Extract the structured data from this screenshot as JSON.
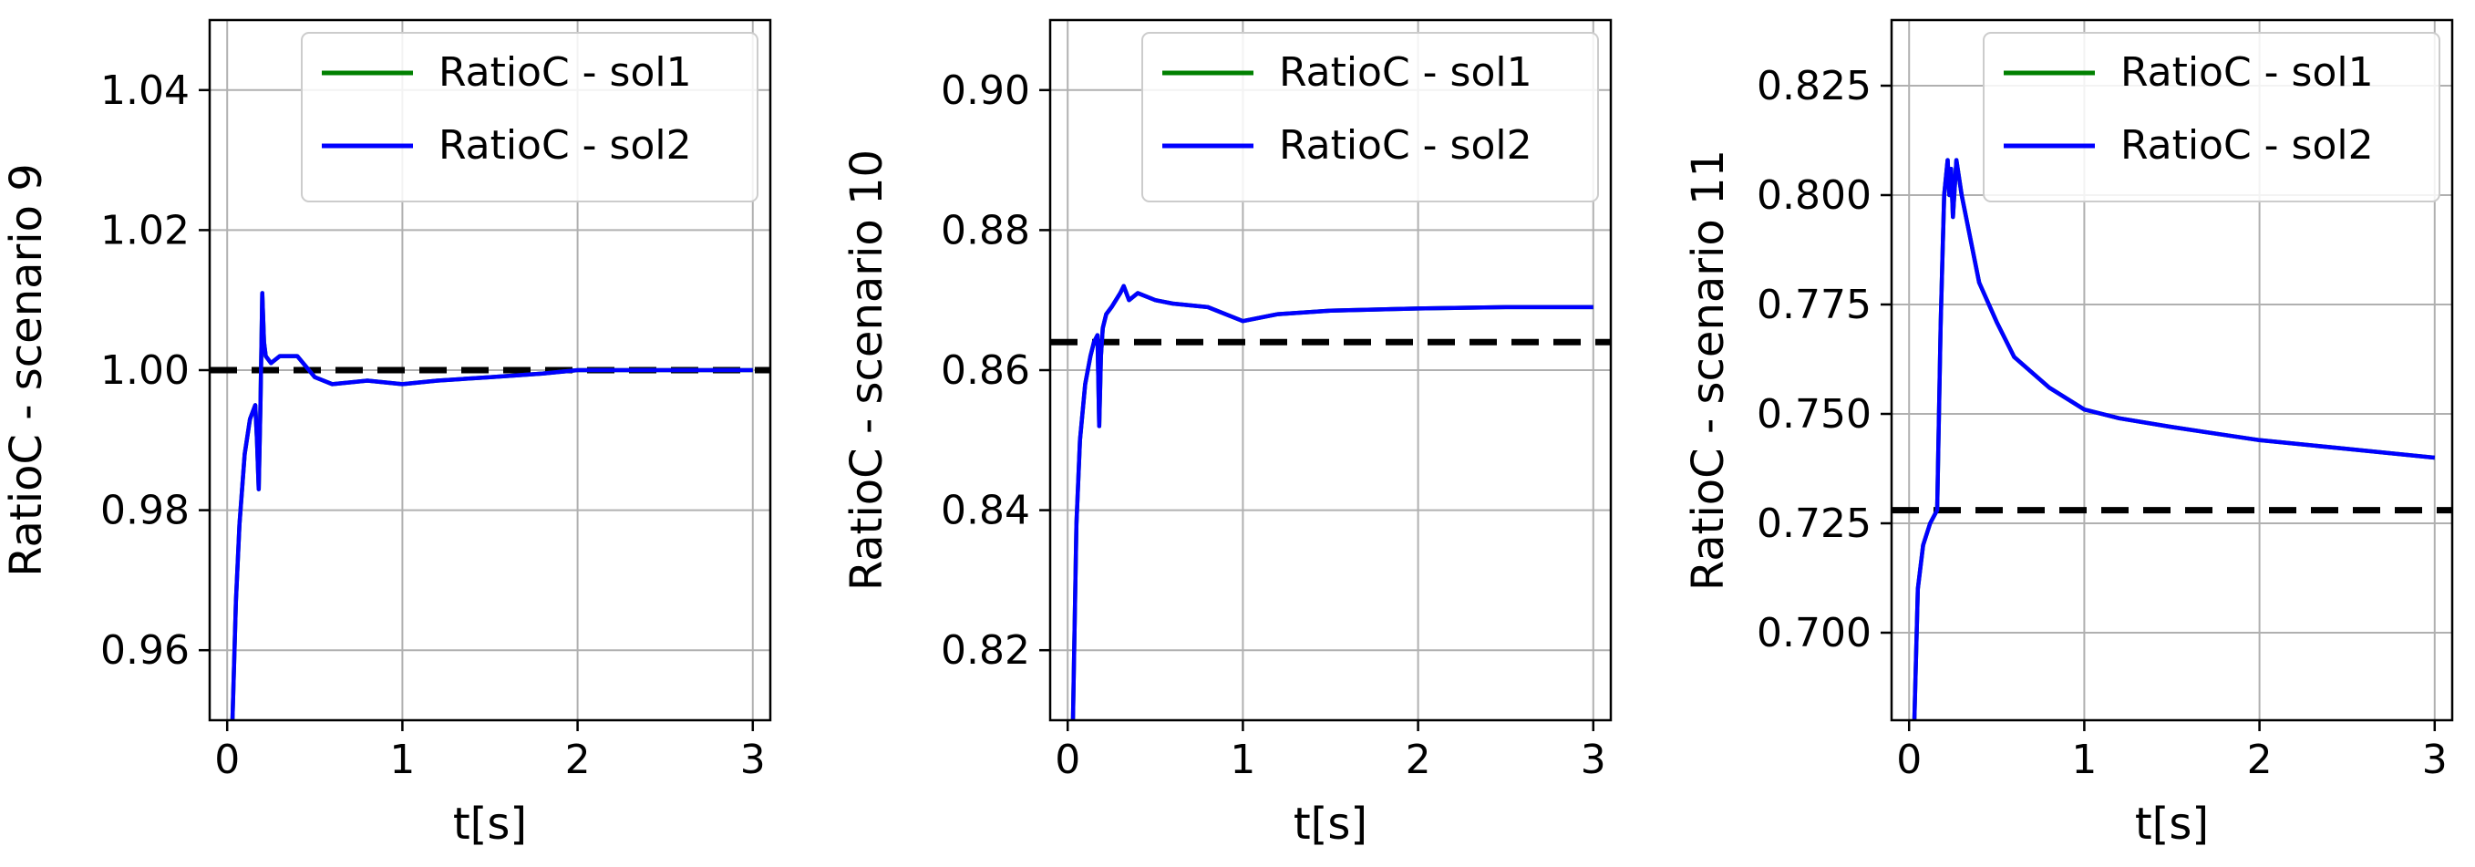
{
  "colors": {
    "sol1": "#008000",
    "sol2": "#0000ff",
    "reference": "#000000",
    "grid": "#b0b0b0"
  },
  "chart_data": [
    {
      "type": "line",
      "xlabel": "t[s]",
      "ylabel": "RatioC - scenario 9",
      "xlim": [
        -0.1,
        3.1
      ],
      "ylim": [
        0.95,
        1.05
      ],
      "xticks": [
        0,
        1,
        2,
        3
      ],
      "xtick_labels": [
        "0",
        "1",
        "2",
        "3"
      ],
      "yticks": [
        0.96,
        0.98,
        1.0,
        1.02,
        1.04
      ],
      "ytick_labels": [
        "0.96",
        "0.98",
        "1.00",
        "1.02",
        "1.04"
      ],
      "grid": true,
      "legend_position": "top-right",
      "reference_line": {
        "style": "dashed",
        "y": 1.0
      },
      "series": [
        {
          "name": "RatioC - sol1",
          "color_key": "sol1",
          "x": [
            0.03,
            0.05,
            0.07,
            0.1,
            0.13,
            0.16,
            0.17,
            0.18,
            0.19,
            0.2,
            0.21,
            0.22,
            0.25,
            0.3,
            0.4,
            0.5,
            0.6,
            0.8,
            1.0,
            1.2,
            1.5,
            1.8,
            2.0,
            2.5,
            3.0
          ],
          "y": [
            0.95,
            0.967,
            0.978,
            0.988,
            0.993,
            0.995,
            0.99,
            0.983,
            0.995,
            1.011,
            1.004,
            1.002,
            1.001,
            1.002,
            1.002,
            0.999,
            0.998,
            0.9985,
            0.998,
            0.9985,
            0.999,
            0.9995,
            1.0,
            1.0,
            1.0
          ]
        },
        {
          "name": "RatioC - sol2",
          "color_key": "sol2",
          "x": [
            0.03,
            0.05,
            0.07,
            0.1,
            0.13,
            0.16,
            0.17,
            0.18,
            0.19,
            0.2,
            0.21,
            0.22,
            0.25,
            0.3,
            0.4,
            0.5,
            0.6,
            0.8,
            1.0,
            1.2,
            1.5,
            1.8,
            2.0,
            2.5,
            3.0
          ],
          "y": [
            0.95,
            0.967,
            0.978,
            0.988,
            0.993,
            0.995,
            0.99,
            0.983,
            0.995,
            1.011,
            1.004,
            1.002,
            1.001,
            1.002,
            1.002,
            0.999,
            0.998,
            0.9985,
            0.998,
            0.9985,
            0.999,
            0.9995,
            1.0,
            1.0,
            1.0
          ]
        }
      ]
    },
    {
      "type": "line",
      "xlabel": "t[s]",
      "ylabel": "RatioC - scenario 10",
      "xlim": [
        -0.1,
        3.1
      ],
      "ylim": [
        0.81,
        0.91
      ],
      "xticks": [
        0,
        1,
        2,
        3
      ],
      "xtick_labels": [
        "0",
        "1",
        "2",
        "3"
      ],
      "yticks": [
        0.82,
        0.84,
        0.86,
        0.88,
        0.9
      ],
      "ytick_labels": [
        "0.82",
        "0.84",
        "0.86",
        "0.88",
        "0.90"
      ],
      "grid": true,
      "legend_position": "top-right",
      "reference_line": {
        "style": "dashed",
        "y": 0.864
      },
      "series": [
        {
          "name": "RatioC - sol1",
          "color_key": "sol1",
          "x": [
            0.03,
            0.05,
            0.07,
            0.1,
            0.13,
            0.15,
            0.17,
            0.18,
            0.19,
            0.2,
            0.22,
            0.25,
            0.3,
            0.32,
            0.35,
            0.4,
            0.5,
            0.6,
            0.8,
            1.0,
            1.2,
            1.5,
            2.0,
            2.5,
            3.0
          ],
          "y": [
            0.81,
            0.838,
            0.85,
            0.858,
            0.862,
            0.864,
            0.865,
            0.852,
            0.862,
            0.866,
            0.868,
            0.869,
            0.871,
            0.872,
            0.87,
            0.871,
            0.87,
            0.8695,
            0.869,
            0.867,
            0.868,
            0.8685,
            0.8688,
            0.869,
            0.869
          ]
        },
        {
          "name": "RatioC - sol2",
          "color_key": "sol2",
          "x": [
            0.03,
            0.05,
            0.07,
            0.1,
            0.13,
            0.15,
            0.17,
            0.18,
            0.19,
            0.2,
            0.22,
            0.25,
            0.3,
            0.32,
            0.35,
            0.4,
            0.5,
            0.6,
            0.8,
            1.0,
            1.2,
            1.5,
            2.0,
            2.5,
            3.0
          ],
          "y": [
            0.81,
            0.838,
            0.85,
            0.858,
            0.862,
            0.864,
            0.865,
            0.852,
            0.862,
            0.866,
            0.868,
            0.869,
            0.871,
            0.872,
            0.87,
            0.871,
            0.87,
            0.8695,
            0.869,
            0.867,
            0.868,
            0.8685,
            0.8688,
            0.869,
            0.869
          ]
        }
      ]
    },
    {
      "type": "line",
      "xlabel": "t[s]",
      "ylabel": "RatioC - scenario 11",
      "xlim": [
        -0.1,
        3.1
      ],
      "ylim": [
        0.68,
        0.84
      ],
      "xticks": [
        0,
        1,
        2,
        3
      ],
      "xtick_labels": [
        "0",
        "1",
        "2",
        "3"
      ],
      "yticks": [
        0.7,
        0.725,
        0.75,
        0.775,
        0.8,
        0.825
      ],
      "ytick_labels": [
        "0.700",
        "0.725",
        "0.750",
        "0.775",
        "0.800",
        "0.825"
      ],
      "grid": true,
      "legend_position": "top-right",
      "reference_line": {
        "style": "dashed",
        "y": 0.728
      },
      "series": [
        {
          "name": "RatioC - sol1",
          "color_key": "sol1",
          "x": [
            0.03,
            0.05,
            0.08,
            0.12,
            0.16,
            0.18,
            0.19,
            0.2,
            0.22,
            0.23,
            0.24,
            0.25,
            0.27,
            0.3,
            0.35,
            0.4,
            0.5,
            0.6,
            0.8,
            1.0,
            1.2,
            1.5,
            2.0,
            2.5,
            3.0
          ],
          "y": [
            0.68,
            0.71,
            0.72,
            0.725,
            0.728,
            0.77,
            0.785,
            0.8,
            0.808,
            0.8,
            0.806,
            0.795,
            0.808,
            0.8,
            0.79,
            0.78,
            0.771,
            0.763,
            0.756,
            0.751,
            0.749,
            0.747,
            0.744,
            0.742,
            0.74
          ]
        },
        {
          "name": "RatioC - sol2",
          "color_key": "sol2",
          "x": [
            0.03,
            0.05,
            0.08,
            0.12,
            0.16,
            0.18,
            0.19,
            0.2,
            0.22,
            0.23,
            0.24,
            0.25,
            0.27,
            0.3,
            0.35,
            0.4,
            0.5,
            0.6,
            0.8,
            1.0,
            1.2,
            1.5,
            2.0,
            2.5,
            3.0
          ],
          "y": [
            0.68,
            0.71,
            0.72,
            0.725,
            0.728,
            0.77,
            0.785,
            0.8,
            0.808,
            0.8,
            0.806,
            0.795,
            0.808,
            0.8,
            0.79,
            0.78,
            0.771,
            0.763,
            0.756,
            0.751,
            0.749,
            0.747,
            0.744,
            0.742,
            0.74
          ]
        }
      ]
    }
  ]
}
